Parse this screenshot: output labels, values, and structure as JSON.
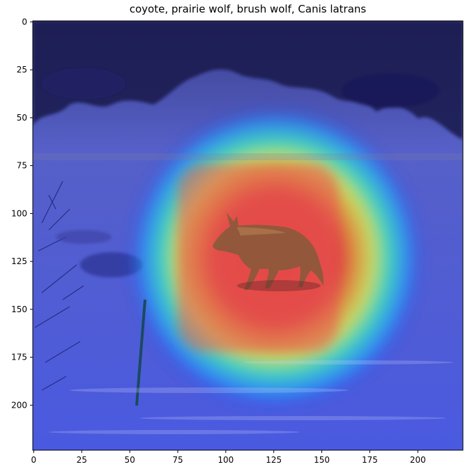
{
  "title": "coyote, prairie wolf, brush wolf, Canis latrans",
  "axes": {
    "x_ticks": [
      0,
      25,
      50,
      75,
      100,
      125,
      150,
      175,
      200
    ],
    "y_ticks": [
      0,
      25,
      50,
      75,
      100,
      125,
      150,
      175,
      200
    ],
    "x_range": [
      -0.5,
      223.5
    ],
    "y_range": [
      -0.5,
      223.5
    ],
    "y_inverted": true
  },
  "heatmap": {
    "colormap": "jet",
    "overlay_alpha": 0.5,
    "center": [
      132,
      112
    ],
    "peak_region": {
      "x": [
        75,
        152
      ],
      "y": [
        72,
        150
      ]
    }
  },
  "scene": {
    "subject": "coyote",
    "colors": {
      "snow": "#e8eefc",
      "trees": "#1a1a4a",
      "coyote": "#8a5a3a"
    }
  }
}
